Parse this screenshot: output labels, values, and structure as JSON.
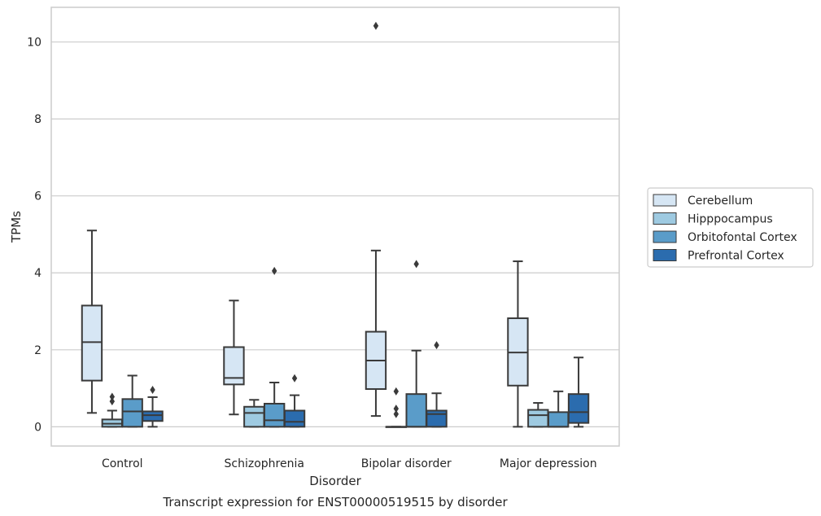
{
  "chart_data": {
    "type": "box",
    "title": "",
    "caption": "Transcript expression for ENST00000519515 by disorder",
    "xlabel": "Disorder",
    "ylabel": "TPMs",
    "ylim": [
      -0.5,
      10.9
    ],
    "yticks": [
      0,
      2,
      4,
      6,
      8,
      10
    ],
    "grid": "horizontal",
    "legend_position": "right",
    "categories": [
      "Control",
      "Schizophrenia",
      "Bipolar disorder",
      "Major depression"
    ],
    "series": [
      {
        "name": "Cerebellum",
        "color": "#d6e6f4",
        "boxes": [
          {
            "whislo": 0.36,
            "q1": 1.2,
            "med": 2.2,
            "q3": 3.15,
            "whishi": 5.1,
            "fliers": []
          },
          {
            "whislo": 0.32,
            "q1": 1.1,
            "med": 1.27,
            "q3": 2.07,
            "whishi": 3.28,
            "fliers": []
          },
          {
            "whislo": 0.28,
            "q1": 0.98,
            "med": 1.72,
            "q3": 2.47,
            "whishi": 4.58,
            "fliers": [
              10.42
            ]
          },
          {
            "whislo": 0.0,
            "q1": 1.07,
            "med": 1.93,
            "q3": 2.82,
            "whishi": 4.3,
            "fliers": []
          }
        ]
      },
      {
        "name": "Hipppocampus",
        "color": "#9ecae1",
        "boxes": [
          {
            "whislo": 0.0,
            "q1": 0.0,
            "med": 0.08,
            "q3": 0.19,
            "whishi": 0.42,
            "fliers": [
              0.66,
              0.78
            ]
          },
          {
            "whislo": 0.0,
            "q1": 0.0,
            "med": 0.36,
            "q3": 0.52,
            "whishi": 0.7,
            "fliers": []
          },
          {
            "whislo": 0.0,
            "q1": 0.0,
            "med": 0.0,
            "q3": 0.0,
            "whishi": 0.0,
            "fliers": [
              0.33,
              0.47,
              0.92
            ]
          },
          {
            "whislo": 0.0,
            "q1": 0.0,
            "med": 0.3,
            "q3": 0.44,
            "whishi": 0.62,
            "fliers": []
          }
        ]
      },
      {
        "name": "Orbitofontal Cortex",
        "color": "#5a9cc9",
        "boxes": [
          {
            "whislo": 0.0,
            "q1": 0.0,
            "med": 0.4,
            "q3": 0.72,
            "whishi": 1.33,
            "fliers": []
          },
          {
            "whislo": 0.0,
            "q1": 0.0,
            "med": 0.17,
            "q3": 0.6,
            "whishi": 1.15,
            "fliers": [
              4.05
            ]
          },
          {
            "whislo": 0.0,
            "q1": 0.0,
            "med": 0.0,
            "q3": 0.85,
            "whishi": 1.98,
            "fliers": [
              4.23
            ]
          },
          {
            "whislo": 0.0,
            "q1": 0.0,
            "med": 0.0,
            "q3": 0.38,
            "whishi": 0.92,
            "fliers": []
          }
        ]
      },
      {
        "name": "Prefrontal Cortex",
        "color": "#2b6cae",
        "boxes": [
          {
            "whislo": 0.0,
            "q1": 0.15,
            "med": 0.3,
            "q3": 0.4,
            "whishi": 0.77,
            "fliers": [
              0.96
            ]
          },
          {
            "whislo": 0.0,
            "q1": 0.0,
            "med": 0.13,
            "q3": 0.42,
            "whishi": 0.82,
            "fliers": [
              1.26
            ]
          },
          {
            "whislo": 0.0,
            "q1": 0.0,
            "med": 0.33,
            "q3": 0.42,
            "whishi": 0.87,
            "fliers": [
              2.12
            ]
          },
          {
            "whislo": 0.0,
            "q1": 0.1,
            "med": 0.38,
            "q3": 0.85,
            "whishi": 1.8,
            "fliers": []
          }
        ]
      }
    ]
  }
}
